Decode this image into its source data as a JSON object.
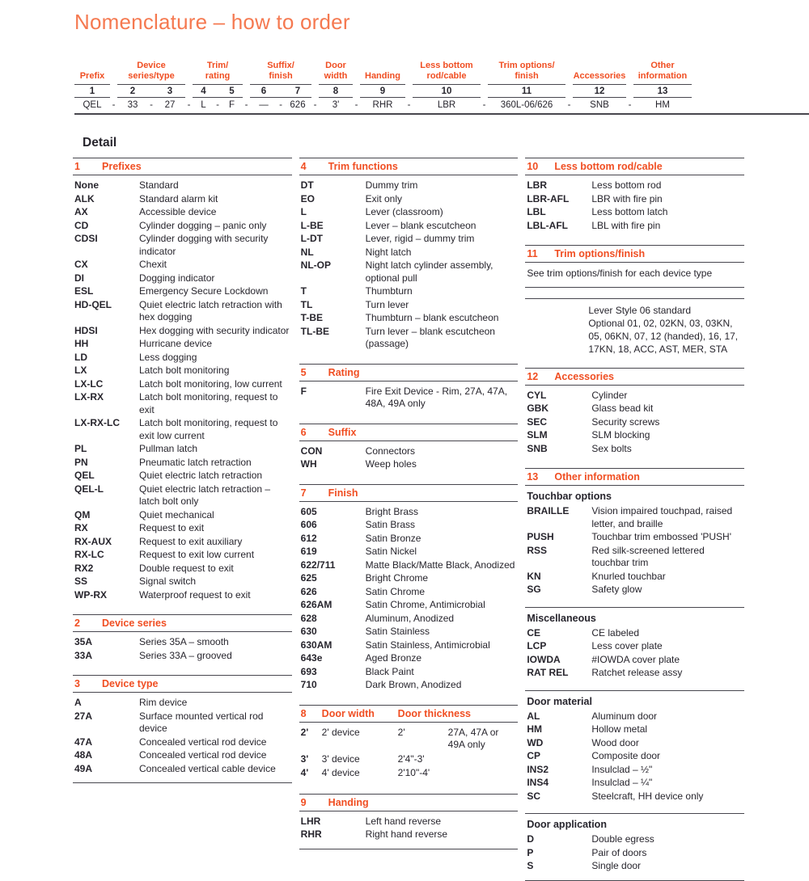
{
  "page": {
    "title": "Nomenclature – how to order",
    "detail_heading": "Detail"
  },
  "colors": {
    "title_orange": "#F57950",
    "section_orange": "#F04E22",
    "text": "#27252D",
    "rule": "#47464E"
  },
  "order_table": {
    "separator": "-",
    "groups": [
      {
        "header": "Prefix",
        "cols": [
          {
            "num": "1",
            "val": "QEL"
          }
        ]
      },
      {
        "header": "Device\nseries/type",
        "cols": [
          {
            "num": "2",
            "val": "33"
          },
          {
            "num": "3",
            "val": "27"
          }
        ]
      },
      {
        "header": "Trim/\nrating",
        "cols": [
          {
            "num": "4",
            "val": "L"
          },
          {
            "num": "5",
            "val": "F"
          }
        ]
      },
      {
        "header": "Suffix/\nfinish",
        "cols": [
          {
            "num": "6",
            "val": "—"
          },
          {
            "num": "7",
            "val": "626"
          }
        ]
      },
      {
        "header": "Door\nwidth",
        "cols": [
          {
            "num": "8",
            "val": "3'"
          }
        ]
      },
      {
        "header": "Handing",
        "cols": [
          {
            "num": "9",
            "val": "RHR"
          }
        ]
      },
      {
        "header": "Less bottom\nrod/cable",
        "cols": [
          {
            "num": "10",
            "val": "LBR"
          }
        ]
      },
      {
        "header": "Trim options/\nfinish",
        "cols": [
          {
            "num": "11",
            "val": "360L-06/626"
          }
        ]
      },
      {
        "header": "Accessories",
        "cols": [
          {
            "num": "12",
            "val": "SNB"
          }
        ]
      },
      {
        "header": "Other\ninformation",
        "cols": [
          {
            "num": "13",
            "val": "HM"
          }
        ]
      }
    ]
  },
  "detail_columns": [
    [
      {
        "num": "1",
        "title": "Prefixes",
        "entries": [
          [
            "None",
            "Standard"
          ],
          [
            "ALK",
            "Standard alarm kit"
          ],
          [
            "AX",
            "Accessible device"
          ],
          [
            "CD",
            "Cylinder dogging – panic only"
          ],
          [
            "CDSI",
            "Cylinder dogging with security indicator"
          ],
          [
            "CX",
            "Chexit"
          ],
          [
            "DI",
            "Dogging indicator"
          ],
          [
            "ESL",
            "Emergency Secure Lockdown"
          ],
          [
            "HD-QEL",
            "Quiet electric latch retraction with hex dogging"
          ],
          [
            "HDSI",
            "Hex dogging with security indicator"
          ],
          [
            "HH",
            "Hurricane device"
          ],
          [
            "LD",
            "Less dogging"
          ],
          [
            "LX",
            "Latch bolt monitoring"
          ],
          [
            "LX-LC",
            "Latch bolt monitoring, low current"
          ],
          [
            "LX-RX",
            "Latch bolt monitoring, request to exit"
          ],
          [
            "LX-RX-LC",
            "Latch bolt monitoring, request to exit low current"
          ],
          [
            "PL",
            "Pullman latch"
          ],
          [
            "PN",
            "Pneumatic latch retraction"
          ],
          [
            "QEL",
            "Quiet electric latch retraction"
          ],
          [
            "QEL-L",
            "Quiet electric latch retraction – latch bolt only"
          ],
          [
            "QM",
            "Quiet mechanical"
          ],
          [
            "RX",
            "Request to exit"
          ],
          [
            "RX-AUX",
            "Request to exit auxiliary"
          ],
          [
            "RX-LC",
            "Request to exit low current"
          ],
          [
            "RX2",
            "Double request to exit"
          ],
          [
            "SS",
            "Signal switch"
          ],
          [
            "WP-RX",
            "Waterproof request to exit"
          ]
        ]
      },
      {
        "num": "2",
        "title": "Device series",
        "entries": [
          [
            "35A",
            "Series 35A – smooth"
          ],
          [
            "33A",
            "Series 33A – grooved"
          ]
        ]
      },
      {
        "num": "3",
        "title": "Device type",
        "entries": [
          [
            "A",
            "Rim device"
          ],
          [
            "27A",
            "Surface mounted vertical rod device"
          ],
          [
            "47A",
            "Concealed vertical rod device"
          ],
          [
            "48A",
            "Concealed vertical rod device"
          ],
          [
            "49A",
            "Concealed vertical cable device"
          ]
        ]
      }
    ],
    [
      {
        "num": "4",
        "title": "Trim functions",
        "entries": [
          [
            "DT",
            "Dummy trim"
          ],
          [
            "EO",
            "Exit only"
          ],
          [
            "L",
            "Lever (classroom)"
          ],
          [
            "L-BE",
            "Lever – blank escutcheon"
          ],
          [
            "L-DT",
            "Lever, rigid – dummy trim"
          ],
          [
            "NL",
            "Night latch"
          ],
          [
            "NL-OP",
            "Night latch cylinder assembly, optional pull"
          ],
          [
            "T",
            "Thumbturn"
          ],
          [
            "TL",
            "Turn lever"
          ],
          [
            "T-BE",
            "Thumbturn – blank escutcheon"
          ],
          [
            "TL-BE",
            "Turn lever – blank escutcheon (passage)"
          ]
        ]
      },
      {
        "num": "5",
        "title": "Rating",
        "entries": [
          [
            "F",
            "Fire Exit Device - Rim, 27A, 47A, 48A, 49A only"
          ]
        ]
      },
      {
        "num": "6",
        "title": "Suffix",
        "entries": [
          [
            "CON",
            "Connectors"
          ],
          [
            "WH",
            "Weep holes"
          ]
        ]
      },
      {
        "num": "7",
        "title": "Finish",
        "entries": [
          [
            "605",
            "Bright Brass"
          ],
          [
            "606",
            "Satin Brass"
          ],
          [
            "612",
            "Satin Bronze"
          ],
          [
            "619",
            "Satin Nickel"
          ],
          [
            "622/711",
            "Matte Black/Matte Black, Anodized"
          ],
          [
            "625",
            "Bright Chrome"
          ],
          [
            "626",
            "Satin Chrome"
          ],
          [
            "626AM",
            "Satin Chrome, Antimicrobial"
          ],
          [
            "628",
            "Aluminum, Anodized"
          ],
          [
            "630",
            "Satin Stainless"
          ],
          [
            "630AM",
            "Satin Stainless, Antimicrobial"
          ],
          [
            "643e",
            "Aged Bronze"
          ],
          [
            "693",
            "Black Paint"
          ],
          [
            "710",
            "Dark Brown, Anodized"
          ]
        ]
      },
      {
        "num": "8",
        "title": "Door width",
        "title2": "Door thickness",
        "door_rows": [
          [
            "2'",
            "2' device",
            "2'",
            "27A, 47A or 49A only"
          ],
          [
            "3'",
            "3' device",
            "2'4\"-3'",
            ""
          ],
          [
            "4'",
            "4' device",
            "2'10\"-4'",
            ""
          ]
        ]
      },
      {
        "num": "9",
        "title": "Handing",
        "entries": [
          [
            "LHR",
            "Left hand reverse"
          ],
          [
            "RHR",
            "Right hand reverse"
          ]
        ]
      }
    ],
    [
      {
        "num": "10",
        "title": "Less bottom rod/cable",
        "entries": [
          [
            "LBR",
            "Less bottom rod"
          ],
          [
            "LBR-AFL",
            "LBR with fire pin"
          ],
          [
            "LBL",
            "Less bottom latch"
          ],
          [
            "LBL-AFL",
            "LBL with fire pin"
          ]
        ]
      },
      {
        "num": "11",
        "title": "Trim options/finish",
        "note": "See trim options/finish for each device type",
        "block": [
          "Lever Style 06 standard",
          "Optional 01, 02, 02KN, 03, 03KN, 05, 06KN, 07, 12 (handed), 16, 17, 17KN, 18, ACC, AST, MER, STA"
        ]
      },
      {
        "num": "12",
        "title": "Accessories",
        "entries": [
          [
            "CYL",
            "Cylinder"
          ],
          [
            "GBK",
            "Glass bead kit"
          ],
          [
            "SEC",
            "Security screws"
          ],
          [
            "SLM",
            "SLM blocking"
          ],
          [
            "SNB",
            "Sex bolts"
          ]
        ]
      },
      {
        "num": "13",
        "title": "Other information",
        "subsections": [
          {
            "title": "Touchbar options",
            "entries": [
              [
                "BRAILLE",
                "Vision impaired touchpad, raised letter, and braille"
              ],
              [
                "PUSH",
                "Touchbar trim embossed 'PUSH'"
              ],
              [
                "RSS",
                "Red silk-screened lettered touchbar trim"
              ],
              [
                "KN",
                "Knurled touchbar"
              ],
              [
                "SG",
                "Safety glow"
              ]
            ]
          },
          {
            "title": "Miscellaneous",
            "entries": [
              [
                "CE",
                "CE labeled"
              ],
              [
                "LCP",
                "Less cover plate"
              ],
              [
                "IOWDA",
                "#IOWDA cover plate"
              ],
              [
                "RAT REL",
                "Ratchet release assy"
              ]
            ]
          },
          {
            "title": "Door material",
            "entries": [
              [
                "AL",
                "Aluminum door"
              ],
              [
                "HM",
                "Hollow metal"
              ],
              [
                "WD",
                "Wood door"
              ],
              [
                "CP",
                "Composite door"
              ],
              [
                "INS2",
                "Insulclad – ½\""
              ],
              [
                "INS4",
                "Insulclad – ¼\""
              ],
              [
                "SC",
                "Steelcraft, HH device only"
              ]
            ]
          },
          {
            "title": "Door application",
            "entries": [
              [
                "D",
                "Double egress"
              ],
              [
                "P",
                "Pair of doors"
              ],
              [
                "S",
                "Single door"
              ]
            ]
          }
        ]
      }
    ]
  ]
}
